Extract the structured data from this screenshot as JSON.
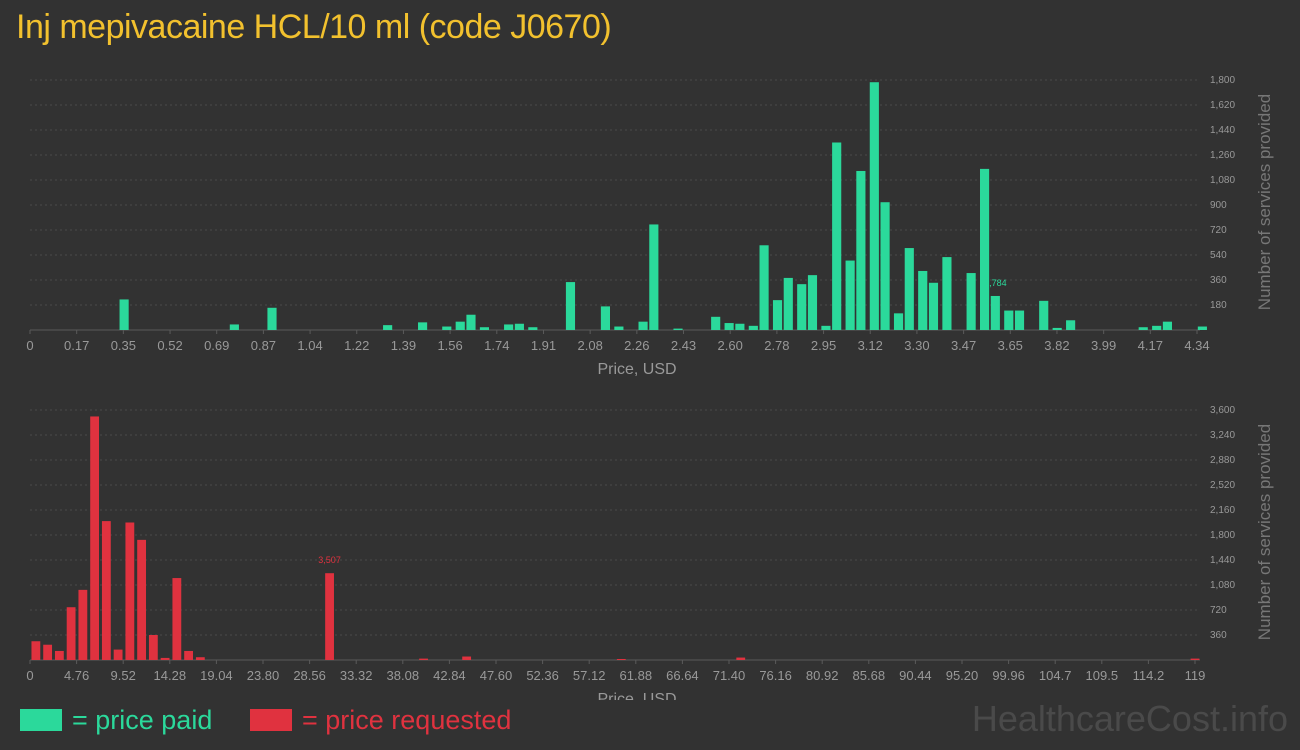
{
  "title": "Inj mepivacaine HCL/10 ml (code J0670)",
  "legend": {
    "paid": "= price paid",
    "requested": "= price requested"
  },
  "brand": "HealthcareCost.info",
  "colors": {
    "paid": "#2bd99b",
    "requested": "#e0323f",
    "title": "#f2c12e",
    "background": "#323232",
    "text": "#999999",
    "grid": "#4a4a4a"
  },
  "chart_data": [
    {
      "type": "bar",
      "series": [
        {
          "name": "price paid",
          "color": "#2bd99b"
        }
      ],
      "xlabel": "Price, USD",
      "ylabel": "Number of services provided",
      "xlim": [
        0,
        4.34
      ],
      "ylim": [
        0,
        1800
      ],
      "x_ticks": [
        "0",
        "0.17",
        "0.35",
        "0.52",
        "0.69",
        "0.87",
        "1.04",
        "1.22",
        "1.39",
        "1.56",
        "1.74",
        "1.91",
        "2.08",
        "2.26",
        "2.43",
        "2.60",
        "2.78",
        "2.95",
        "3.12",
        "3.30",
        "3.47",
        "3.65",
        "3.82",
        "3.99",
        "4.17",
        "4.34"
      ],
      "y_ticks": [
        "180",
        "360",
        "540",
        "720",
        "900",
        "1,080",
        "1,260",
        "1,440",
        "1,620",
        "1,800"
      ],
      "peak_label": "1,784",
      "bars": [
        {
          "x": 0.35,
          "y": 220
        },
        {
          "x": 0.76,
          "y": 40
        },
        {
          "x": 0.9,
          "y": 160
        },
        {
          "x": 1.33,
          "y": 35
        },
        {
          "x": 1.46,
          "y": 55
        },
        {
          "x": 1.55,
          "y": 25
        },
        {
          "x": 1.6,
          "y": 60
        },
        {
          "x": 1.64,
          "y": 110
        },
        {
          "x": 1.69,
          "y": 20
        },
        {
          "x": 1.78,
          "y": 40
        },
        {
          "x": 1.82,
          "y": 45
        },
        {
          "x": 1.87,
          "y": 20
        },
        {
          "x": 2.01,
          "y": 345
        },
        {
          "x": 2.14,
          "y": 170
        },
        {
          "x": 2.19,
          "y": 25
        },
        {
          "x": 2.28,
          "y": 60
        },
        {
          "x": 2.32,
          "y": 760
        },
        {
          "x": 2.41,
          "y": 10
        },
        {
          "x": 2.55,
          "y": 95
        },
        {
          "x": 2.6,
          "y": 50
        },
        {
          "x": 2.64,
          "y": 45
        },
        {
          "x": 2.69,
          "y": 30
        },
        {
          "x": 2.73,
          "y": 610
        },
        {
          "x": 2.78,
          "y": 215
        },
        {
          "x": 2.82,
          "y": 375
        },
        {
          "x": 2.87,
          "y": 330
        },
        {
          "x": 2.91,
          "y": 395
        },
        {
          "x": 2.96,
          "y": 30
        },
        {
          "x": 3.0,
          "y": 1350
        },
        {
          "x": 3.05,
          "y": 500
        },
        {
          "x": 3.09,
          "y": 1145
        },
        {
          "x": 3.14,
          "y": 1784
        },
        {
          "x": 3.18,
          "y": 920
        },
        {
          "x": 3.23,
          "y": 120
        },
        {
          "x": 3.27,
          "y": 590
        },
        {
          "x": 3.32,
          "y": 425
        },
        {
          "x": 3.36,
          "y": 340
        },
        {
          "x": 3.41,
          "y": 525
        },
        {
          "x": 3.5,
          "y": 410
        },
        {
          "x": 3.55,
          "y": 1160
        },
        {
          "x": 3.59,
          "y": 245
        },
        {
          "x": 3.64,
          "y": 140
        },
        {
          "x": 3.68,
          "y": 140
        },
        {
          "x": 3.77,
          "y": 210
        },
        {
          "x": 3.82,
          "y": 15
        },
        {
          "x": 3.87,
          "y": 70
        },
        {
          "x": 4.14,
          "y": 20
        },
        {
          "x": 4.19,
          "y": 30
        },
        {
          "x": 4.23,
          "y": 60
        },
        {
          "x": 4.36,
          "y": 25
        }
      ]
    },
    {
      "type": "bar",
      "series": [
        {
          "name": "price requested",
          "color": "#e0323f"
        }
      ],
      "xlabel": "Price, USD",
      "ylabel": "Number of services provided",
      "xlim": [
        0,
        119
      ],
      "ylim": [
        0,
        3600
      ],
      "x_ticks": [
        "0",
        "4.76",
        "9.52",
        "14.28",
        "19.04",
        "23.80",
        "28.56",
        "33.32",
        "38.08",
        "42.84",
        "47.60",
        "52.36",
        "57.12",
        "61.88",
        "66.64",
        "71.40",
        "76.16",
        "80.92",
        "85.68",
        "90.44",
        "95.20",
        "99.96",
        "104.7",
        "109.5",
        "114.2",
        "119"
      ],
      "y_ticks": [
        "360",
        "720",
        "1,080",
        "1,440",
        "1,800",
        "2,160",
        "2,520",
        "2,880",
        "3,240",
        "3,600"
      ],
      "peak_label": "3,507",
      "bars": [
        {
          "x": 0.6,
          "y": 270
        },
        {
          "x": 1.8,
          "y": 220
        },
        {
          "x": 3.0,
          "y": 130
        },
        {
          "x": 4.2,
          "y": 760
        },
        {
          "x": 5.4,
          "y": 1010
        },
        {
          "x": 6.6,
          "y": 3507
        },
        {
          "x": 7.8,
          "y": 2000
        },
        {
          "x": 9.0,
          "y": 150
        },
        {
          "x": 10.2,
          "y": 1980
        },
        {
          "x": 11.4,
          "y": 1730
        },
        {
          "x": 12.6,
          "y": 360
        },
        {
          "x": 13.8,
          "y": 30
        },
        {
          "x": 15.0,
          "y": 1180
        },
        {
          "x": 16.2,
          "y": 130
        },
        {
          "x": 17.4,
          "y": 40
        },
        {
          "x": 30.6,
          "y": 1250
        },
        {
          "x": 40.2,
          "y": 20
        },
        {
          "x": 44.6,
          "y": 50
        },
        {
          "x": 60.4,
          "y": 10
        },
        {
          "x": 72.6,
          "y": 35
        },
        {
          "x": 119.0,
          "y": 20
        }
      ]
    }
  ]
}
